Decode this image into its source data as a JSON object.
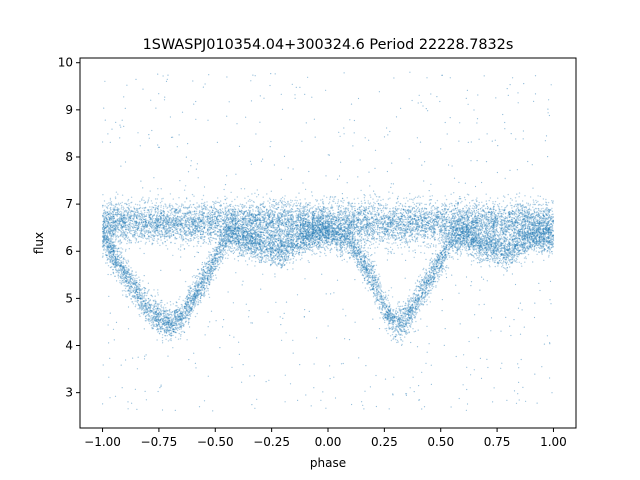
{
  "chart_data": {
    "type": "scatter",
    "title": "1SWASPJ010354.04+300324.6 Period 22228.7832s",
    "xlabel": "phase",
    "ylabel": "flux",
    "xlim": [
      -1.1,
      1.1
    ],
    "ylim": [
      2.25,
      10.1
    ],
    "xticks": [
      -1.0,
      -0.75,
      -0.5,
      -0.25,
      0.0,
      0.25,
      0.5,
      0.75,
      1.0
    ],
    "xtick_labels": [
      "−1.00",
      "−0.75",
      "−0.50",
      "−0.25",
      "0.00",
      "0.25",
      "0.50",
      "0.75",
      "1.00"
    ],
    "yticks": [
      3,
      4,
      5,
      6,
      7,
      8,
      9,
      10
    ],
    "ytick_labels": [
      "3",
      "4",
      "5",
      "6",
      "7",
      "8",
      "9",
      "10"
    ],
    "grid": false,
    "legend": "none",
    "marker_color": "#1f77b4",
    "series": [
      {
        "description_points": "folded light curve, phase repeated twice",
        "x": [
          -1.0,
          -0.9,
          -0.8,
          -0.75,
          -0.7,
          -0.65,
          -0.6,
          -0.5,
          -0.45,
          -0.4,
          -0.3,
          -0.2,
          -0.1,
          0.0,
          0.1,
          0.2,
          0.25,
          0.3,
          0.35,
          0.4,
          0.5,
          0.55,
          0.6,
          0.7,
          0.8,
          0.9,
          1.0
        ],
        "y": [
          6.3,
          5.5,
          4.8,
          4.6,
          4.45,
          4.6,
          5.0,
          5.8,
          6.3,
          6.3,
          6.1,
          6.0,
          6.3,
          6.4,
          6.2,
          5.4,
          4.8,
          4.45,
          4.6,
          5.0,
          5.8,
          6.3,
          6.3,
          6.1,
          6.0,
          6.3,
          6.3
        ]
      }
    ]
  }
}
